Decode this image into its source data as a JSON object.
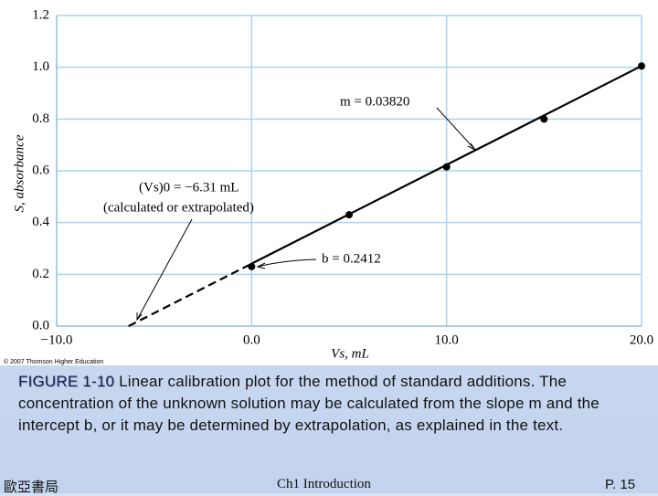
{
  "chart_data": {
    "type": "scatter",
    "x_label": "Vs, mL",
    "y_label": "S, absorbance",
    "xlim": [
      -10,
      20
    ],
    "xticks": [
      {
        "value": -10,
        "label": "−10.0"
      },
      {
        "value": 0,
        "label": "0.0"
      },
      {
        "value": 10,
        "label": "10.0"
      },
      {
        "value": 20,
        "label": "20.0"
      }
    ],
    "ylim": [
      0,
      1.2
    ],
    "yticks": [
      {
        "value": 0,
        "label": "0.0"
      },
      0.2,
      0.4,
      0.6,
      0.8,
      {
        "value": 1,
        "label": "1.0"
      },
      1.2
    ],
    "grid": true,
    "series": [
      {
        "style": "dashed",
        "color": "#000000",
        "x": [
          -6.31,
          0
        ],
        "values": [
          0,
          0.2412
        ]
      },
      {
        "style": "solid",
        "color": "#000000",
        "x": [
          0,
          20
        ],
        "values": [
          0.2412,
          1.0052
        ]
      },
      {
        "style": "markers",
        "color": "#000000",
        "x": [
          0,
          5,
          10,
          15,
          20
        ],
        "values": [
          0.23,
          0.43,
          0.615,
          0.8,
          1.005
        ]
      }
    ],
    "annotations": [
      "m = 0.03820",
      "(Vs)0 = −6.31 mL",
      "(calculated or extrapolated)",
      "b = 0.2412"
    ],
    "copyright": "© 2007 Thomson Higher Education"
  },
  "slide": {
    "caption_label": "FIGURE 1-10",
    "caption": "Linear calibration plot for the method of standard additions. The concentration of the unknown solution may be calculated from the slope m and the intercept b, or it may be determined by extrapolation, as explained in the text.",
    "publisher": "歐亞書局",
    "chapter": "Ch1 Introduction",
    "page": "P. 15"
  }
}
